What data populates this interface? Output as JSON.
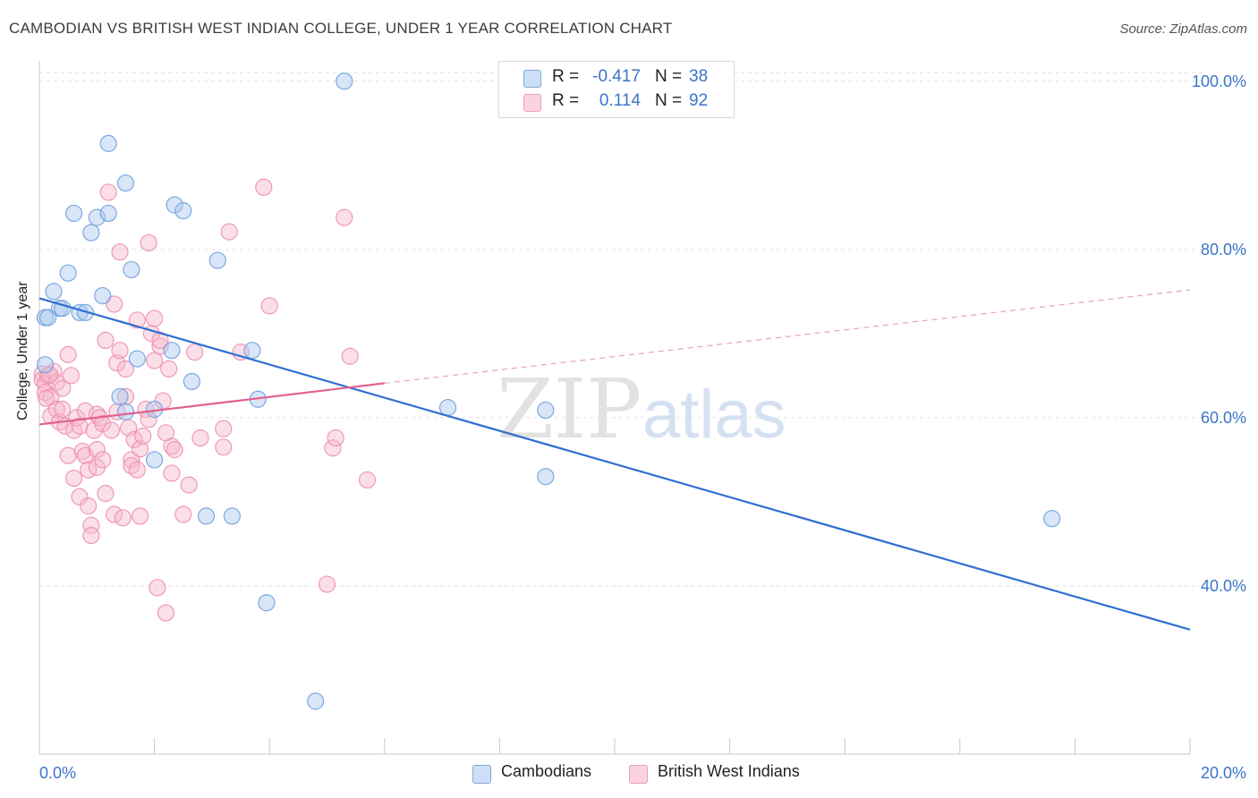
{
  "header": {
    "title": "CAMBODIAN VS BRITISH WEST INDIAN COLLEGE, UNDER 1 YEAR CORRELATION CHART",
    "source": "Source: ZipAtlas.com"
  },
  "watermark": {
    "zip": "ZIP",
    "atlas": "atlas"
  },
  "legend": {
    "rows": [
      {
        "r_label": "R =",
        "r_value": "-0.417",
        "n_label": "N =",
        "n_value": "38",
        "color": "#a9c8ef"
      },
      {
        "r_label": "R =",
        "r_value": "0.114",
        "n_label": "N =",
        "n_value": "92",
        "color": "#f6b8cc"
      }
    ]
  },
  "bottom_legend": {
    "items": [
      {
        "label": "Cambodians",
        "color": "#a9c8ef"
      },
      {
        "label": "British West Indians",
        "color": "#f6b8cc"
      }
    ]
  },
  "chart_data": {
    "type": "scatter",
    "title": "CAMBODIAN VS BRITISH WEST INDIAN COLLEGE, UNDER 1 YEAR CORRELATION CHART",
    "xlabel": "",
    "ylabel": "College, Under 1 year",
    "xlim": [
      0,
      20
    ],
    "ylim": [
      20,
      102
    ],
    "x_tick_labels": [
      "0.0%",
      "20.0%"
    ],
    "y_ticks": [
      40,
      60,
      80,
      100
    ],
    "y_tick_labels": [
      "40.0%",
      "60.0%",
      "80.0%",
      "100.0%"
    ],
    "grid": true,
    "legend_position": "top-center",
    "series": [
      {
        "name": "Cambodians",
        "color": "#6fa0dc",
        "fill": "#a9c8ef",
        "trend": {
          "x": [
            0,
            20
          ],
          "y": [
            74.2,
            34.8
          ],
          "style": "solid",
          "color": "#2f6fd0"
        },
        "points": [
          [
            0.1,
            66.3
          ],
          [
            0.1,
            71.9
          ],
          [
            0.25,
            75.0
          ],
          [
            0.35,
            73.0
          ],
          [
            0.4,
            73.0
          ],
          [
            0.5,
            77.2
          ],
          [
            0.6,
            84.3
          ],
          [
            0.7,
            72.5
          ],
          [
            0.8,
            72.5
          ],
          [
            0.9,
            82.0
          ],
          [
            1.0,
            83.8
          ],
          [
            1.1,
            74.5
          ],
          [
            1.2,
            84.3
          ],
          [
            1.2,
            92.6
          ],
          [
            1.5,
            87.9
          ],
          [
            1.6,
            77.6
          ],
          [
            1.7,
            67.0
          ],
          [
            1.4,
            62.5
          ],
          [
            1.5,
            60.7
          ],
          [
            2.0,
            61.0
          ],
          [
            2.0,
            55.0
          ],
          [
            2.3,
            68.0
          ],
          [
            2.35,
            85.3
          ],
          [
            2.5,
            84.6
          ],
          [
            2.65,
            64.3
          ],
          [
            2.9,
            48.3
          ],
          [
            3.1,
            78.7
          ],
          [
            3.35,
            48.3
          ],
          [
            3.7,
            68.0
          ],
          [
            3.8,
            62.2
          ],
          [
            3.95,
            38.0
          ],
          [
            4.8,
            26.3
          ],
          [
            5.3,
            100.0
          ],
          [
            7.1,
            61.2
          ],
          [
            8.8,
            53.0
          ],
          [
            8.8,
            60.9
          ],
          [
            17.6,
            48.0
          ],
          [
            0.15,
            71.9
          ]
        ]
      },
      {
        "name": "British West Indians",
        "color": "#ee8fb0",
        "fill": "#f6b8cc",
        "trend": {
          "x": [
            0,
            6.0
          ],
          "y": [
            59.2,
            64.1
          ],
          "style": "solid",
          "color": "#e0628f",
          "dashed_extension": {
            "x": [
              6.0,
              20
            ],
            "y": [
              64.1,
              75.2
            ]
          }
        },
        "points": [
          [
            0.05,
            65.2
          ],
          [
            0.05,
            64.5
          ],
          [
            0.1,
            64.0
          ],
          [
            0.1,
            63.0
          ],
          [
            0.15,
            65.0
          ],
          [
            0.2,
            62.5
          ],
          [
            0.2,
            60.2
          ],
          [
            0.25,
            65.5
          ],
          [
            0.3,
            61.0
          ],
          [
            0.3,
            64.2
          ],
          [
            0.35,
            59.5
          ],
          [
            0.4,
            61.0
          ],
          [
            0.4,
            63.5
          ],
          [
            0.45,
            59.0
          ],
          [
            0.5,
            55.5
          ],
          [
            0.5,
            67.5
          ],
          [
            0.55,
            65.0
          ],
          [
            0.6,
            58.5
          ],
          [
            0.6,
            52.8
          ],
          [
            0.65,
            60.0
          ],
          [
            0.7,
            50.6
          ],
          [
            0.7,
            59.0
          ],
          [
            0.75,
            56.0
          ],
          [
            0.8,
            55.5
          ],
          [
            0.8,
            60.8
          ],
          [
            0.85,
            49.5
          ],
          [
            0.85,
            53.8
          ],
          [
            0.9,
            47.2
          ],
          [
            0.9,
            46.0
          ],
          [
            0.95,
            58.5
          ],
          [
            1.0,
            56.2
          ],
          [
            1.0,
            54.1
          ],
          [
            1.0,
            60.4
          ],
          [
            1.05,
            60.0
          ],
          [
            1.1,
            59.3
          ],
          [
            1.1,
            55.0
          ],
          [
            1.15,
            69.2
          ],
          [
            1.15,
            51.0
          ],
          [
            1.2,
            86.8
          ],
          [
            1.25,
            58.5
          ],
          [
            1.3,
            73.5
          ],
          [
            1.3,
            48.5
          ],
          [
            1.35,
            60.7
          ],
          [
            1.35,
            66.5
          ],
          [
            1.4,
            79.7
          ],
          [
            1.4,
            68.0
          ],
          [
            1.45,
            48.1
          ],
          [
            1.5,
            62.5
          ],
          [
            1.5,
            65.8
          ],
          [
            1.55,
            58.8
          ],
          [
            1.6,
            55.0
          ],
          [
            1.6,
            54.3
          ],
          [
            1.65,
            57.4
          ],
          [
            1.7,
            71.6
          ],
          [
            1.7,
            53.8
          ],
          [
            1.75,
            56.3
          ],
          [
            1.8,
            57.8
          ],
          [
            1.85,
            61.0
          ],
          [
            1.9,
            80.8
          ],
          [
            1.9,
            59.8
          ],
          [
            1.95,
            70.0
          ],
          [
            2.0,
            66.8
          ],
          [
            2.0,
            71.8
          ],
          [
            2.05,
            39.8
          ],
          [
            2.1,
            68.5
          ],
          [
            2.1,
            69.2
          ],
          [
            2.15,
            62.0
          ],
          [
            2.2,
            36.8
          ],
          [
            2.2,
            58.2
          ],
          [
            2.25,
            65.8
          ],
          [
            2.3,
            53.4
          ],
          [
            2.3,
            56.6
          ],
          [
            2.35,
            56.2
          ],
          [
            2.5,
            48.5
          ],
          [
            2.6,
            52.0
          ],
          [
            2.7,
            67.8
          ],
          [
            2.8,
            57.6
          ],
          [
            3.2,
            58.7
          ],
          [
            3.2,
            56.5
          ],
          [
            3.3,
            82.1
          ],
          [
            3.5,
            67.8
          ],
          [
            3.9,
            87.4
          ],
          [
            4.0,
            73.3
          ],
          [
            5.0,
            40.2
          ],
          [
            5.1,
            56.4
          ],
          [
            5.15,
            57.6
          ],
          [
            5.3,
            83.8
          ],
          [
            5.4,
            67.3
          ],
          [
            5.7,
            52.6
          ],
          [
            0.12,
            62.3
          ],
          [
            0.18,
            65.1
          ],
          [
            1.75,
            48.3
          ]
        ]
      }
    ]
  }
}
